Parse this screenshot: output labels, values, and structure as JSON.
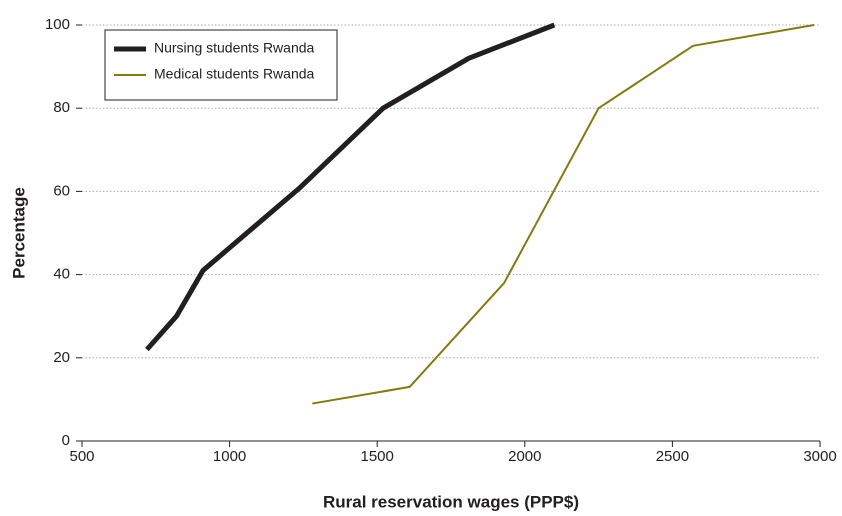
{
  "chart_data": {
    "type": "line",
    "xlabel": "Rural reservation wages (PPP$)",
    "ylabel": "Percentage",
    "series": [
      {
        "name": "Nursing students Rwanda",
        "color": "#231f20",
        "width": 5,
        "x": [
          720,
          820,
          910,
          1240,
          1520,
          1810,
          2100
        ],
        "values": [
          22,
          30,
          41,
          61,
          80,
          92,
          100
        ]
      },
      {
        "name": "Medical students Rwanda",
        "color": "#857a0c",
        "width": 2,
        "x": [
          1280,
          1610,
          1930,
          2250,
          2570,
          2980
        ],
        "values": [
          9,
          13,
          38,
          80,
          95,
          100
        ]
      }
    ],
    "xlim": [
      500,
      3000
    ],
    "xticks": [
      500,
      1000,
      1500,
      2000,
      2500,
      3000
    ],
    "ylim": [
      0,
      100
    ],
    "yticks": [
      0,
      20,
      40,
      60,
      80,
      100
    ],
    "grid": true,
    "legend": "upper left"
  }
}
